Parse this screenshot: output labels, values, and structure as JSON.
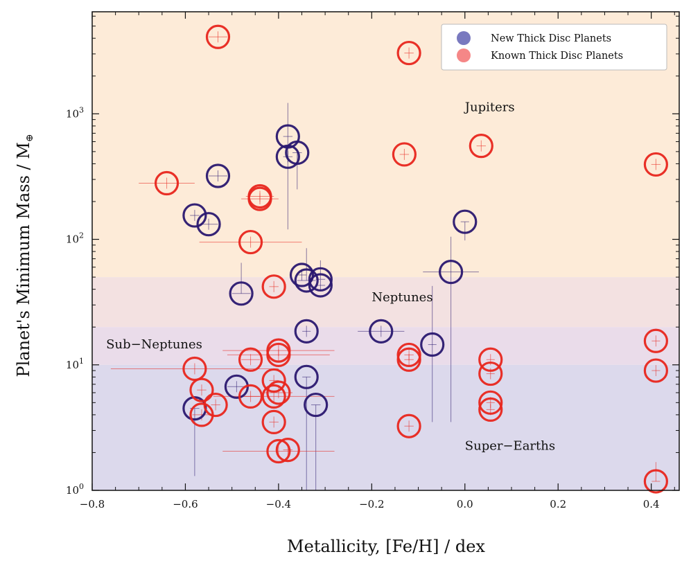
{
  "chart_data": {
    "type": "scatter",
    "title": "",
    "xlabel": "Metallicity, [Fe/H] / dex",
    "ylabel": "Planet's Minimum Mass / M",
    "ylabel_symbol": "⊕",
    "xlim": [
      -0.8,
      0.46
    ],
    "ylim": [
      1,
      6500
    ],
    "yscale": "log",
    "x_ticks": [
      -0.8,
      -0.6,
      -0.4,
      -0.2,
      0.0,
      0.2,
      0.4
    ],
    "x_tick_labels": [
      "−0.8",
      "−0.6",
      "−0.4",
      "−0.2",
      "0.0",
      "0.2",
      "0.4"
    ],
    "y_ticks": [
      1,
      10,
      100,
      1000
    ],
    "y_tick_labels": [
      {
        "base": "10",
        "exp": "0"
      },
      {
        "base": "10",
        "exp": "1"
      },
      {
        "base": "10",
        "exp": "2"
      },
      {
        "base": "10",
        "exp": "3"
      }
    ],
    "regions": [
      {
        "name": "Jupiters",
        "ymin": 50,
        "ymax": 6500,
        "color": "#fdebd8"
      },
      {
        "name": "Neptunes",
        "ymin": 20,
        "ymax": 50,
        "color": "#f3e1e1"
      },
      {
        "name": "Sub-Neptunes",
        "ymin": 10,
        "ymax": 20,
        "color": "#eadcea"
      },
      {
        "name": "Super-Earths",
        "ymin": 1,
        "ymax": 10,
        "color": "#dcd9ec"
      }
    ],
    "region_labels": [
      {
        "text": "Jupiters",
        "x": 0.0,
        "y": 1050
      },
      {
        "text": "Neptunes",
        "x": -0.2,
        "y": 32
      },
      {
        "text": "Sub−Neptunes",
        "x": -0.77,
        "y": 13.5
      },
      {
        "text": "Super−Earths",
        "x": 0.0,
        "y": 2.1
      }
    ],
    "legend": {
      "position": "top-right",
      "entries": [
        {
          "label": "New Thick Disc Planets",
          "color": "#6a6ab8"
        },
        {
          "label": "Known Thick Disc Planets",
          "color": "#f47a7a"
        }
      ]
    },
    "series": [
      {
        "name": "New Thick Disc Planets",
        "color": "#2a1870",
        "points": [
          {
            "x": -0.53,
            "y": 320,
            "xerr": 0.02,
            "yerr_lo": 0,
            "yerr_hi": 0
          },
          {
            "x": -0.58,
            "y": 155,
            "xerr": 0.01,
            "yerr_lo": 0,
            "yerr_hi": 0
          },
          {
            "x": -0.55,
            "y": 132,
            "xerr": 0.02,
            "yerr_lo": 0,
            "yerr_hi": 0
          },
          {
            "x": -0.38,
            "y": 660,
            "xerr": 0.01,
            "yerr_lo": 540,
            "yerr_hi": 560
          },
          {
            "x": -0.36,
            "y": 490,
            "xerr": 0.01,
            "yerr_lo": 240,
            "yerr_hi": 0
          },
          {
            "x": -0.38,
            "y": 455,
            "xerr": 0.01,
            "yerr_lo": 0,
            "yerr_hi": 0
          },
          {
            "x": 0.0,
            "y": 138,
            "xerr": 0.0,
            "yerr_lo": 40,
            "yerr_hi": 0
          },
          {
            "x": -0.03,
            "y": 55,
            "xerr": 0.06,
            "yerr_lo": 51.5,
            "yerr_hi": 50
          },
          {
            "x": -0.35,
            "y": 52,
            "xerr": 0.01,
            "yerr_lo": 0,
            "yerr_hi": 0
          },
          {
            "x": -0.34,
            "y": 47,
            "xerr": 0.02,
            "yerr_lo": 0,
            "yerr_hi": 38
          },
          {
            "x": -0.31,
            "y": 48,
            "xerr": 0.01,
            "yerr_lo": 0,
            "yerr_hi": 20
          },
          {
            "x": -0.31,
            "y": 43,
            "xerr": 0.01,
            "yerr_lo": 0,
            "yerr_hi": 0
          },
          {
            "x": -0.48,
            "y": 37,
            "xerr": 0.02,
            "yerr_lo": 0,
            "yerr_hi": 28
          },
          {
            "x": -0.34,
            "y": 18.5,
            "xerr": 0.0,
            "yerr_lo": 0,
            "yerr_hi": 0
          },
          {
            "x": -0.18,
            "y": 18.5,
            "xerr": 0.05,
            "yerr_lo": 0,
            "yerr_hi": 0
          },
          {
            "x": -0.07,
            "y": 14.5,
            "xerr": 0.0,
            "yerr_lo": 11,
            "yerr_hi": 28
          },
          {
            "x": -0.34,
            "y": 8.0,
            "xerr": 0.0,
            "yerr_lo": 7.0,
            "yerr_hi": 0
          },
          {
            "x": -0.49,
            "y": 6.7,
            "xerr": 0.02,
            "yerr_lo": 0,
            "yerr_hi": 0
          },
          {
            "x": -0.58,
            "y": 4.5,
            "xerr": 0.01,
            "yerr_lo": 3.2,
            "yerr_hi": 0
          },
          {
            "x": -0.32,
            "y": 4.8,
            "xerr": 0.01,
            "yerr_lo": 3.8,
            "yerr_hi": 0
          }
        ]
      },
      {
        "name": "Known Thick Disc Planets",
        "color": "#e8261e",
        "points": [
          {
            "x": -0.53,
            "y": 4100,
            "xerr": 0.02,
            "yerr_lo": 0,
            "yerr_hi": 0
          },
          {
            "x": -0.12,
            "y": 3050,
            "xerr": 0.01,
            "yerr_lo": 0,
            "yerr_hi": 0
          },
          {
            "x": -0.13,
            "y": 475,
            "xerr": 0.01,
            "yerr_lo": 0,
            "yerr_hi": 0
          },
          {
            "x": 0.035,
            "y": 555,
            "xerr": 0.01,
            "yerr_lo": 0,
            "yerr_hi": 0
          },
          {
            "x": 0.41,
            "y": 395,
            "xerr": 0.01,
            "yerr_lo": 0,
            "yerr_hi": 0
          },
          {
            "x": -0.64,
            "y": 280,
            "xerr": 0.06,
            "yerr_lo": 0,
            "yerr_hi": 0
          },
          {
            "x": -0.44,
            "y": 220,
            "xerr": 0.03,
            "yerr_lo": 0,
            "yerr_hi": 0
          },
          {
            "x": -0.44,
            "y": 210,
            "xerr": 0.04,
            "yerr_lo": 0,
            "yerr_hi": 0
          },
          {
            "x": -0.46,
            "y": 95,
            "xerr": 0.11,
            "yerr_lo": 0,
            "yerr_hi": 0
          },
          {
            "x": -0.41,
            "y": 42,
            "xerr": 0.01,
            "yerr_lo": 0,
            "yerr_hi": 0
          },
          {
            "x": -0.4,
            "y": 13.0,
            "xerr": 0.12,
            "yerr_lo": 0,
            "yerr_hi": 0
          },
          {
            "x": -0.4,
            "y": 12.0,
            "xerr": 0.11,
            "yerr_lo": 0,
            "yerr_hi": 0
          },
          {
            "x": -0.46,
            "y": 11.0,
            "xerr": 0.02,
            "yerr_lo": 0,
            "yerr_hi": 0
          },
          {
            "x": -0.12,
            "y": 12.0,
            "xerr": 0.01,
            "yerr_lo": 0,
            "yerr_hi": 0
          },
          {
            "x": -0.12,
            "y": 11.0,
            "xerr": 0.01,
            "yerr_lo": 0,
            "yerr_hi": 0
          },
          {
            "x": 0.055,
            "y": 11.0,
            "xerr": 0.0,
            "yerr_lo": 0,
            "yerr_hi": 0
          },
          {
            "x": 0.41,
            "y": 15.5,
            "xerr": 0.0,
            "yerr_lo": 0,
            "yerr_hi": 0
          },
          {
            "x": -0.58,
            "y": 9.3,
            "xerr": 0.18,
            "yerr_lo": 0,
            "yerr_hi": 0
          },
          {
            "x": 0.055,
            "y": 8.5,
            "xerr": 0.0,
            "yerr_lo": 0,
            "yerr_hi": 0
          },
          {
            "x": 0.41,
            "y": 9.0,
            "xerr": 0.0,
            "yerr_lo": 0,
            "yerr_hi": 0
          },
          {
            "x": -0.41,
            "y": 7.5,
            "xerr": 0.01,
            "yerr_lo": 0,
            "yerr_hi": 0
          },
          {
            "x": -0.565,
            "y": 6.3,
            "xerr": 0.01,
            "yerr_lo": 0,
            "yerr_hi": 0
          },
          {
            "x": -0.4,
            "y": 6.0,
            "xerr": 0.03,
            "yerr_lo": 0,
            "yerr_hi": 0
          },
          {
            "x": -0.41,
            "y": 5.6,
            "xerr": 0.13,
            "yerr_lo": 0,
            "yerr_hi": 0
          },
          {
            "x": -0.46,
            "y": 5.6,
            "xerr": 0.02,
            "yerr_lo": 0,
            "yerr_hi": 0
          },
          {
            "x": -0.535,
            "y": 4.8,
            "xerr": 0.01,
            "yerr_lo": 0,
            "yerr_hi": 0
          },
          {
            "x": -0.565,
            "y": 4.0,
            "xerr": 0.02,
            "yerr_lo": 0,
            "yerr_hi": 0
          },
          {
            "x": 0.055,
            "y": 5.0,
            "xerr": 0.0,
            "yerr_lo": 0,
            "yerr_hi": 0
          },
          {
            "x": 0.055,
            "y": 4.4,
            "xerr": 0.0,
            "yerr_lo": 0,
            "yerr_hi": 0
          },
          {
            "x": -0.41,
            "y": 3.5,
            "xerr": 0.01,
            "yerr_lo": 0,
            "yerr_hi": 0
          },
          {
            "x": -0.12,
            "y": 3.25,
            "xerr": 0.01,
            "yerr_lo": 0,
            "yerr_hi": 0
          },
          {
            "x": -0.4,
            "y": 2.05,
            "xerr": 0.12,
            "yerr_lo": 0,
            "yerr_hi": 0
          },
          {
            "x": -0.38,
            "y": 2.1,
            "xerr": 0.01,
            "yerr_lo": 0,
            "yerr_hi": 0
          },
          {
            "x": 0.41,
            "y": 1.18,
            "xerr": 0.0,
            "yerr_lo": 0,
            "yerr_hi": 0.5
          }
        ]
      }
    ]
  }
}
